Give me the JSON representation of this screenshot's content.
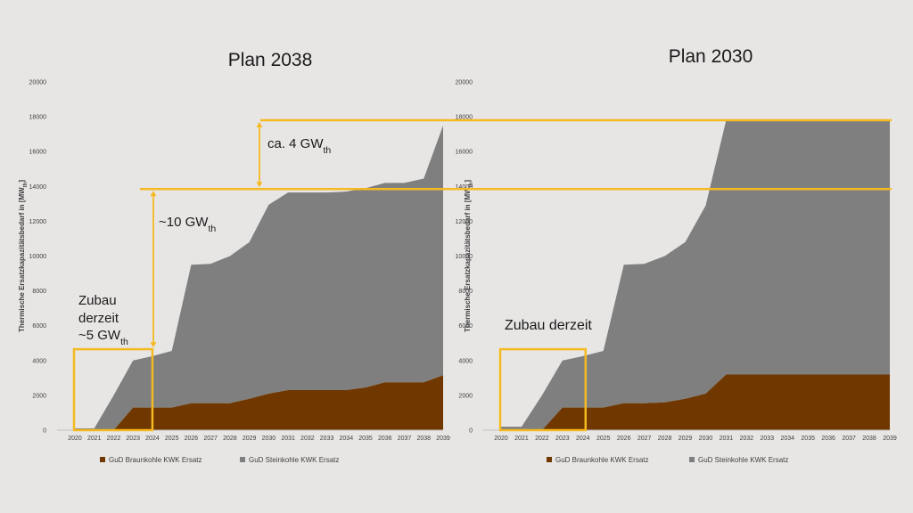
{
  "colors": {
    "background": "#e8e6e5",
    "braunkohle": "#703800",
    "steinkohle": "#7f7f7f",
    "annotation": "#f5b921",
    "text": "#1a1a1a",
    "axis_text": "#404040"
  },
  "chart_data": [
    {
      "type": "area",
      "stacked": true,
      "title": "Plan 2038",
      "xlabel": "",
      "ylabel": "Thermische Ersatzkapazitätsbedarf in [MW",
      "ylabel_sub": "th",
      "ylabel_end": "]",
      "ylim": [
        0,
        20000
      ],
      "yticks": [
        "0",
        "2000",
        "4000",
        "6000",
        "8000",
        "10000",
        "12000",
        "14000",
        "16000",
        "18000",
        "20000"
      ],
      "x": [
        "2020",
        "2021",
        "2022",
        "2023",
        "2024",
        "2025",
        "2026",
        "2027",
        "2028",
        "2029",
        "2030",
        "2031",
        "2032",
        "2033",
        "2034",
        "2035",
        "2036",
        "2037",
        "2038",
        "2039"
      ],
      "legend_position": "bottom",
      "series": [
        {
          "name": "GuD Braunkohle KWK Ersatz",
          "values": [
            0,
            0,
            0,
            1300,
            1300,
            1300,
            1550,
            1550,
            1550,
            1800,
            2100,
            2300,
            2300,
            2300,
            2300,
            2450,
            2750,
            2750,
            2750,
            3150
          ]
        },
        {
          "name": "GuD Steinkohle KWK Ersatz",
          "values": [
            100,
            100,
            2000,
            2700,
            2950,
            3250,
            7950,
            8000,
            8450,
            9000,
            10850,
            11350,
            11350,
            11350,
            11400,
            11450,
            11450,
            11450,
            11700,
            14350
          ]
        }
      ],
      "annotations": {
        "zubau": [
          "Zubau",
          "derzeit",
          "~5 GW"
        ],
        "zubau_sub": "th",
        "ten": "~10 GW",
        "ten_sub": "th",
        "four": "ca. 4 GW",
        "four_sub": "th"
      }
    },
    {
      "type": "area",
      "stacked": true,
      "title": "Plan 2030",
      "xlabel": "",
      "ylabel": "Thermische Ersatzkapazitätsbedarf in [MW",
      "ylabel_sub": "th",
      "ylabel_end": "]",
      "ylim": [
        0,
        20000
      ],
      "yticks": [
        "0",
        "2000",
        "4000",
        "6000",
        "8000",
        "10000",
        "12000",
        "14000",
        "16000",
        "18000",
        "20000"
      ],
      "x": [
        "2020",
        "2021",
        "2022",
        "2023",
        "2024",
        "2025",
        "2026",
        "2027",
        "2028",
        "2029",
        "2030",
        "2031",
        "2032",
        "2033",
        "2034",
        "2035",
        "2036",
        "2037",
        "2038",
        "2039"
      ],
      "legend_position": "bottom",
      "series": [
        {
          "name": "GuD Braunkohle KWK Ersatz",
          "values": [
            0,
            0,
            0,
            1300,
            1300,
            1300,
            1550,
            1550,
            1600,
            1800,
            2100,
            3200,
            3200,
            3200,
            3200,
            3200,
            3200,
            3200,
            3200,
            3200
          ]
        },
        {
          "name": "GuD Steinkohle KWK Ersatz",
          "values": [
            200,
            200,
            2000,
            2700,
            2950,
            3250,
            7950,
            8000,
            8400,
            9000,
            10800,
            14600,
            14600,
            14600,
            14600,
            14600,
            14600,
            14600,
            14600,
            14600
          ]
        }
      ],
      "annotations": {
        "zubau": [
          "Zubau derzeit"
        ]
      }
    }
  ]
}
